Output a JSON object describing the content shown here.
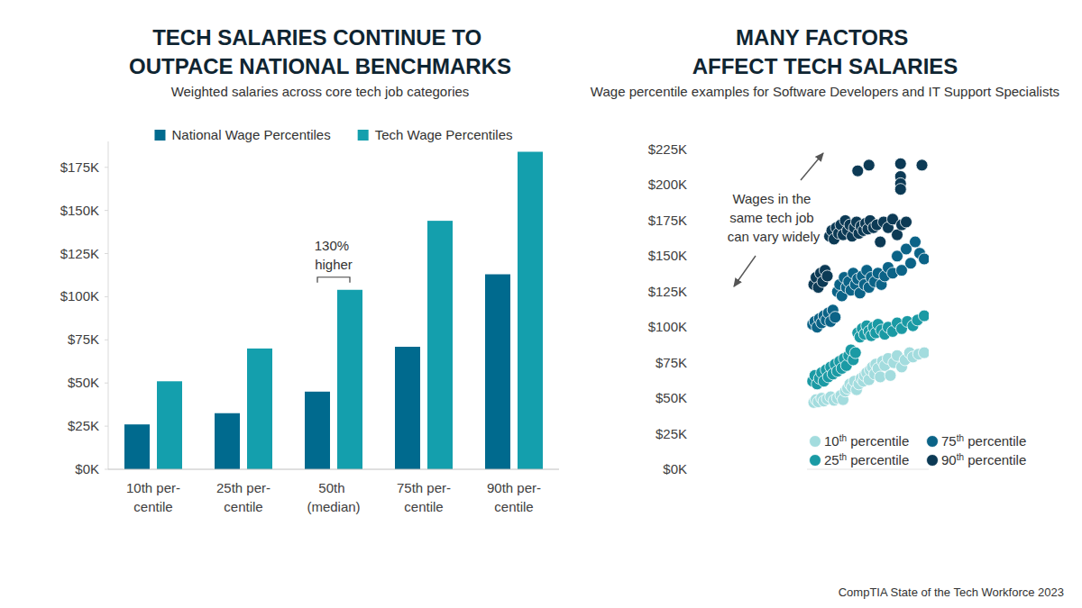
{
  "chart_data": [
    {
      "type": "bar",
      "title": "TECH SALARIES CONTINUE TO OUTPACE NATIONAL BENCHMARKS",
      "subtitle": "Weighted salaries across core tech job categories",
      "categories": [
        "10th per-centile",
        "25th per-centile",
        "50th (median)",
        "75th per-centile",
        "90th per-centile"
      ],
      "series": [
        {
          "name": "National Wage Percentiles",
          "color": "#006a8e",
          "values": [
            26000,
            32500,
            45000,
            71000,
            113000
          ]
        },
        {
          "name": "Tech Wage Percentiles",
          "color": "#149fad",
          "values": [
            51000,
            70000,
            104000,
            144000,
            184000
          ]
        }
      ],
      "ylim": [
        0,
        190000
      ],
      "yticks": [
        {
          "value": 0,
          "label": "$0K"
        },
        {
          "value": 25000,
          "label": "$25K"
        },
        {
          "value": 50000,
          "label": "$50K"
        },
        {
          "value": 75000,
          "label": "$75K"
        },
        {
          "value": 100000,
          "label": "$100K"
        },
        {
          "value": 125000,
          "label": "$125K"
        },
        {
          "value": 150000,
          "label": "$150K"
        },
        {
          "value": 175000,
          "label": "$175K"
        }
      ],
      "grid": false,
      "legend": "top",
      "annotation": "130% higher"
    },
    {
      "type": "scatter",
      "title": "MANY FACTORS AFFECT TECH SALARIES",
      "subtitle": "Wage percentile examples for Software Developers and IT Support Specialists",
      "annotation": "Wages in the same tech job can vary widely",
      "series": [
        {
          "name": "10th percentile",
          "color": "#a3dcde",
          "x": [
            2,
            4,
            6,
            9,
            11,
            14,
            17,
            20,
            23,
            26,
            28,
            30,
            32,
            34,
            36,
            38,
            40,
            42,
            44,
            46,
            47,
            49,
            51,
            52,
            54,
            56,
            57,
            59,
            61,
            63,
            65,
            68,
            70,
            73,
            76,
            80,
            83,
            87,
            90,
            95,
            100
          ],
          "values": [
            47000,
            49000,
            47500,
            50000,
            48000,
            49500,
            51000,
            48500,
            50000,
            52000,
            49000,
            55000,
            57000,
            60000,
            58000,
            62000,
            56000,
            60000,
            64000,
            62000,
            66000,
            68000,
            63000,
            70000,
            72000,
            67000,
            74000,
            71000,
            65000,
            76000,
            73000,
            78000,
            66000,
            75000,
            80000,
            72000,
            77000,
            82000,
            79000,
            81000,
            82000
          ]
        },
        {
          "name": "25th percentile",
          "color": "#1a9aa4",
          "x": [
            1,
            3,
            5,
            7,
            9,
            11,
            13,
            15,
            17,
            19,
            21,
            23,
            25,
            27,
            29,
            31,
            33,
            35,
            37,
            39,
            41,
            43,
            45,
            47,
            49,
            51,
            53,
            55,
            57,
            59,
            62,
            65,
            68,
            72,
            76,
            80,
            85,
            90,
            94,
            100
          ],
          "values": [
            62000,
            66000,
            60000,
            64000,
            68000,
            62000,
            70000,
            65000,
            72000,
            67000,
            74000,
            69000,
            76000,
            71000,
            78000,
            73000,
            80000,
            84000,
            77000,
            82000,
            96000,
            93000,
            99000,
            95000,
            101000,
            97000,
            94000,
            100000,
            96000,
            102000,
            98000,
            95000,
            100000,
            97000,
            103000,
            99000,
            104000,
            101000,
            105000,
            108000
          ]
        },
        {
          "name": "75th percentile",
          "color": "#0b6387",
          "x": [
            1,
            3,
            5,
            7,
            9,
            11,
            13,
            15,
            17,
            19,
            21,
            23,
            25,
            27,
            29,
            31,
            33,
            35,
            37,
            39,
            41,
            43,
            45,
            47,
            49,
            51,
            53,
            56,
            59,
            62,
            65,
            68,
            72,
            76,
            80,
            84,
            88,
            92,
            96,
            100
          ],
          "values": [
            102000,
            104000,
            100000,
            106000,
            103000,
            108000,
            105000,
            110000,
            104000,
            112000,
            107000,
            125000,
            130000,
            122000,
            135000,
            128000,
            132000,
            126000,
            138000,
            130000,
            134000,
            124000,
            136000,
            130000,
            140000,
            128000,
            135000,
            132000,
            138000,
            130000,
            136000,
            142000,
            138000,
            150000,
            140000,
            155000,
            145000,
            160000,
            152000,
            148000
          ]
        },
        {
          "name": "90th percentile",
          "color": "#0c3a55",
          "x": [
            2,
            4,
            6,
            8,
            10,
            12,
            14,
            16,
            18,
            20,
            22,
            24,
            26,
            28,
            30,
            32,
            34,
            36,
            38,
            40,
            42,
            44,
            46,
            48,
            50,
            52,
            55,
            58,
            61,
            64,
            68,
            72,
            76,
            80,
            84,
            41,
            51,
            79,
            79,
            79,
            79,
            98
          ],
          "values": [
            130000,
            135000,
            128000,
            138000,
            132000,
            140000,
            136000,
            164000,
            168000,
            162000,
            170000,
            166000,
            172000,
            165000,
            175000,
            168000,
            172000,
            164000,
            170000,
            174000,
            166000,
            171000,
            168000,
            173000,
            169000,
            175000,
            170000,
            172000,
            160000,
            174000,
            170000,
            176000,
            165000,
            172000,
            174000,
            210000,
            214000,
            215000,
            206000,
            201000,
            197000,
            214000
          ]
        }
      ],
      "xlim": [
        -4,
        104
      ],
      "ylim": [
        0,
        225000
      ],
      "yticks": [
        {
          "value": 0,
          "label": "$0K"
        },
        {
          "value": 25000,
          "label": "$25K"
        },
        {
          "value": 50000,
          "label": "$50K"
        },
        {
          "value": 75000,
          "label": "$75K"
        },
        {
          "value": 100000,
          "label": "$100K"
        },
        {
          "value": 125000,
          "label": "$125K"
        },
        {
          "value": 150000,
          "label": "$150K"
        },
        {
          "value": 175000,
          "label": "$175K"
        },
        {
          "value": 200000,
          "label": "$200K"
        },
        {
          "value": 225000,
          "label": "$225K"
        }
      ],
      "tick_labels": "y",
      "grid": false,
      "legend": "bottom",
      "marker": "circle"
    }
  ],
  "source": "CompTIA State of the Tech Workforce 2023"
}
